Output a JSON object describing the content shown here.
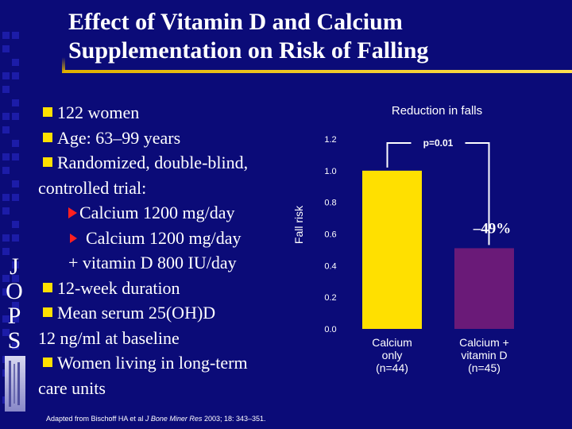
{
  "slide": {
    "title_line1": "Effect of Vitamin D and Calcium",
    "title_line2": "Supplementation on Risk of Falling",
    "side_letters": [
      "J",
      "O",
      "P",
      "S"
    ],
    "bullets": {
      "b1": "122 women",
      "b2": "Age: 63–99 years",
      "b3": "Randomized, double-blind,",
      "b3_cont": "controlled trial:",
      "s1": "Calcium 1200 mg/day",
      "s2": "Calcium 1200 mg/day",
      "s2_cont": "+ vitamin D 800 IU/day",
      "b4": "12-week duration",
      "b5": "Mean serum 25(OH)D",
      "b5_cont": "12 ng/ml at baseline",
      "b6": "Women living in long-term",
      "b6_cont": "care units"
    },
    "footnote": {
      "pre": "Adapted from Bischoff HA et al ",
      "journal": "J Bone Miner Res",
      "post": " 2003; 18: 343–351."
    }
  },
  "chart_data": {
    "type": "bar",
    "title": "Reduction in falls",
    "ylabel": "Fall risk",
    "ylim": [
      0,
      1.2
    ],
    "yticks": [
      "0.0",
      "0.2",
      "0.4",
      "0.6",
      "0.8",
      "1.0",
      "1.2"
    ],
    "categories": [
      [
        "Calcium",
        "only",
        "(n=44)"
      ],
      [
        "Calcium +",
        "vitamin D",
        "(n=45)"
      ]
    ],
    "values": [
      1.0,
      0.51
    ],
    "bar_colors": [
      "#ffe000",
      "#6a1a78"
    ],
    "annotations": {
      "p_value": "p=0.01",
      "reduction": "–49%"
    }
  }
}
